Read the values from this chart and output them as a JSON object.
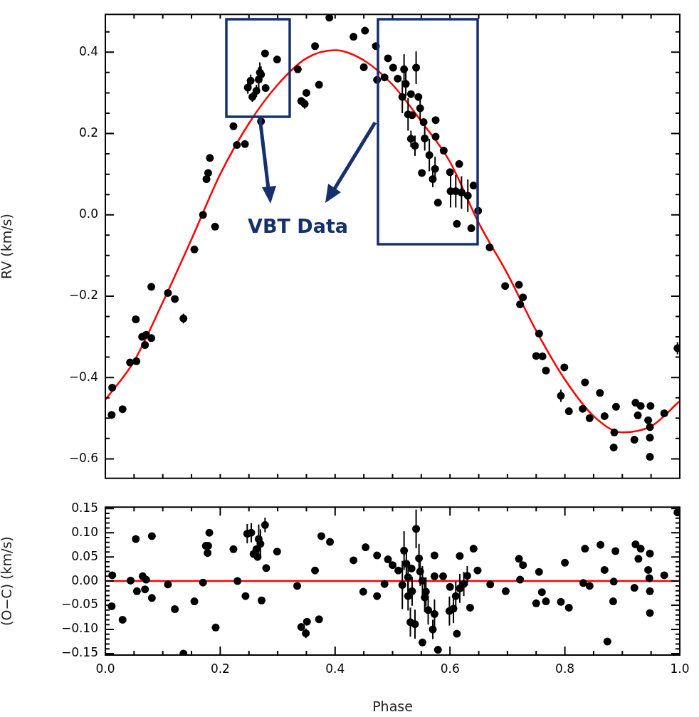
{
  "chart_data": [
    {
      "type": "scatter",
      "ylabel": "RV (km/s)",
      "annotations": [
        "VBT Data"
      ],
      "xlim": [
        0,
        1
      ],
      "xticks": [
        {
          "value": 0,
          "label": null
        },
        {
          "value": 0.05,
          "label": null
        },
        {
          "value": 0.1,
          "label": null
        },
        {
          "value": 0.15,
          "label": null
        },
        {
          "value": 0.2,
          "label": null
        },
        {
          "value": 0.25,
          "label": null
        },
        {
          "value": 0.3,
          "label": null
        },
        {
          "value": 0.35,
          "label": null
        },
        {
          "value": 0.4,
          "label": null
        },
        {
          "value": 0.45,
          "label": null
        },
        {
          "value": 0.5,
          "label": null
        },
        {
          "value": 0.55,
          "label": null
        },
        {
          "value": 0.6,
          "label": null
        },
        {
          "value": 0.65,
          "label": null
        },
        {
          "value": 0.7,
          "label": null
        },
        {
          "value": 0.75,
          "label": null
        },
        {
          "value": 0.8,
          "label": null
        },
        {
          "value": 0.85,
          "label": null
        },
        {
          "value": 0.9,
          "label": null
        },
        {
          "value": 0.95,
          "label": null
        },
        {
          "value": 1,
          "label": null
        }
      ],
      "ylim": [
        -0.648,
        0.493
      ],
      "yticks": [
        {
          "value": -0.6,
          "label": "−0.6"
        },
        {
          "value": -0.55,
          "label": null
        },
        {
          "value": -0.5,
          "label": null
        },
        {
          "value": -0.45,
          "label": null
        },
        {
          "value": -0.4,
          "label": "−0.4"
        },
        {
          "value": -0.35,
          "label": null
        },
        {
          "value": -0.3,
          "label": null
        },
        {
          "value": -0.25,
          "label": null
        },
        {
          "value": -0.2,
          "label": "−0.2"
        },
        {
          "value": -0.15,
          "label": null
        },
        {
          "value": -0.1,
          "label": null
        },
        {
          "value": -0.05,
          "label": null
        },
        {
          "value": 0,
          "label": "0.0"
        },
        {
          "value": 0.05,
          "label": null
        },
        {
          "value": 0.1,
          "label": null
        },
        {
          "value": 0.15,
          "label": null
        },
        {
          "value": 0.2,
          "label": "0.2"
        },
        {
          "value": 0.25,
          "label": null
        },
        {
          "value": 0.3,
          "label": null
        },
        {
          "value": 0.35,
          "label": null
        },
        {
          "value": 0.4,
          "label": "0.4"
        },
        {
          "value": 0.45,
          "label": null
        }
      ],
      "tick_labels": "y",
      "marker": "circle",
      "series": [
        {
          "color": "#000000",
          "x": [
            0.011,
            0.012,
            0.03,
            0.043,
            0.053,
            0.054,
            0.064,
            0.069,
            0.071,
            0.08,
            0.08,
            0.109,
            0.121,
            0.136,
            0.155,
            0.17,
            0.176,
            0.179,
            0.182,
            0.191,
            0.223,
            0.229,
            0.243,
            0.248,
            0.253,
            0.256,
            0.263,
            0.267,
            0.269,
            0.271,
            0.271,
            0.278,
            0.279,
            0.299,
            0.335,
            0.341,
            0.347,
            0.35,
            0.365,
            0.372,
            0.39,
            0.432,
            0.45,
            0.452,
            0.471,
            0.473,
            0.486,
            0.492,
            0.501,
            0.509,
            0.517,
            0.52,
            0.523,
            0.527,
            0.532,
            0.532,
            0.534,
            0.539,
            0.541,
            0.545,
            0.548,
            0.551,
            0.554,
            0.556,
            0.564,
            0.57,
            0.574,
            0.575,
            0.575,
            0.579,
            0.589,
            0.6,
            0.601,
            0.61,
            0.612,
            0.616,
            0.62,
            0.631,
            0.637,
            0.641,
            0.649,
            0.669,
            0.696,
            0.72,
            0.722,
            0.727,
            0.75,
            0.755,
            0.761,
            0.767,
            0.793,
            0.799,
            0.807,
            0.831,
            0.835,
            0.843,
            0.861,
            0.869,
            0.885,
            0.886,
            0.889,
            0.921,
            0.923,
            0.927,
            0.932,
            0.945,
            0.948,
            0.948,
            0.948,
            0.949,
            0.973,
            0.996
          ],
          "values": [
            -0.492,
            -0.425,
            -0.478,
            -0.363,
            -0.257,
            -0.36,
            -0.3,
            -0.32,
            -0.295,
            -0.303,
            -0.177,
            -0.192,
            -0.207,
            -0.255,
            -0.085,
            0.0,
            0.088,
            0.103,
            0.14,
            -0.029,
            0.218,
            0.172,
            0.174,
            0.313,
            0.33,
            0.29,
            0.305,
            0.333,
            0.35,
            0.345,
            0.23,
            0.397,
            0.312,
            0.382,
            0.358,
            0.28,
            0.273,
            0.3,
            0.415,
            0.32,
            0.485,
            0.438,
            0.363,
            0.453,
            0.415,
            0.332,
            0.338,
            0.385,
            0.362,
            0.335,
            0.29,
            0.358,
            0.322,
            0.247,
            0.297,
            0.187,
            0.245,
            0.17,
            0.362,
            0.29,
            0.262,
            0.103,
            0.228,
            0.188,
            0.147,
            0.088,
            0.113,
            0.233,
            0.192,
            0.03,
            0.158,
            0.105,
            0.058,
            0.058,
            -0.022,
            0.125,
            0.055,
            0.047,
            -0.033,
            0.072,
            0.01,
            -0.08,
            -0.175,
            -0.172,
            -0.22,
            -0.203,
            -0.347,
            -0.292,
            -0.348,
            -0.383,
            -0.445,
            -0.375,
            -0.483,
            -0.477,
            -0.412,
            -0.5,
            -0.438,
            -0.495,
            -0.572,
            -0.535,
            -0.472,
            -0.553,
            -0.462,
            -0.493,
            -0.47,
            -0.505,
            -0.522,
            -0.548,
            -0.595,
            -0.47,
            -0.488,
            -0.328
          ],
          "errors": [
            null,
            null,
            null,
            null,
            null,
            null,
            null,
            null,
            null,
            null,
            null,
            null,
            null,
            0.012,
            null,
            null,
            null,
            null,
            null,
            null,
            null,
            null,
            null,
            0.015,
            0.015,
            0.012,
            0.015,
            0.03,
            0.025,
            0.02,
            null,
            null,
            null,
            null,
            null,
            null,
            0.012,
            null,
            null,
            null,
            null,
            null,
            null,
            null,
            null,
            null,
            null,
            null,
            null,
            null,
            0.04,
            0.037,
            0.03,
            0.04,
            null,
            0.02,
            null,
            0.025,
            0.04,
            null,
            0.03,
            null,
            null,
            0.03,
            0.04,
            0.02,
            0.03,
            null,
            null,
            null,
            null,
            null,
            0.04,
            0.04,
            null,
            null,
            0.04,
            0.04,
            null,
            null,
            null,
            null,
            null,
            null,
            null,
            null,
            null,
            null,
            null,
            null,
            0.015,
            null,
            null,
            null,
            null,
            null,
            null,
            null,
            null,
            null,
            null,
            null,
            null,
            null,
            null,
            null,
            null,
            null,
            null,
            null,
            null,
            0.015
          ]
        },
        {
          "type": "line",
          "marker": "none",
          "color": "#ff0000",
          "x": [
            0,
            0.05,
            0.1,
            0.15,
            0.2,
            0.25,
            0.3,
            0.35,
            0.4,
            0.45,
            0.5,
            0.55,
            0.6,
            0.65,
            0.7,
            0.75,
            0.8,
            0.85,
            0.9,
            0.95,
            1
          ],
          "values": [
            -0.455,
            -0.36,
            -0.215,
            -0.06,
            0.1,
            0.225,
            0.32,
            0.385,
            0.405,
            0.38,
            0.32,
            0.23,
            0.13,
            -0.02,
            -0.145,
            -0.285,
            -0.405,
            -0.495,
            -0.535,
            -0.52,
            -0.458
          ]
        }
      ]
    },
    {
      "type": "scatter",
      "xlabel": "Phase",
      "ylabel": "(O−C) (km/s)",
      "xlim": [
        0,
        1
      ],
      "xticks": [
        {
          "value": 0,
          "label": "0.0"
        },
        {
          "value": 0.05,
          "label": null
        },
        {
          "value": 0.1,
          "label": null
        },
        {
          "value": 0.15,
          "label": null
        },
        {
          "value": 0.2,
          "label": "0.2"
        },
        {
          "value": 0.25,
          "label": null
        },
        {
          "value": 0.3,
          "label": null
        },
        {
          "value": 0.35,
          "label": null
        },
        {
          "value": 0.4,
          "label": "0.4"
        },
        {
          "value": 0.45,
          "label": null
        },
        {
          "value": 0.5,
          "label": null
        },
        {
          "value": 0.55,
          "label": null
        },
        {
          "value": 0.6,
          "label": "0.6"
        },
        {
          "value": 0.65,
          "label": null
        },
        {
          "value": 0.7,
          "label": null
        },
        {
          "value": 0.75,
          "label": null
        },
        {
          "value": 0.8,
          "label": "0.8"
        },
        {
          "value": 0.85,
          "label": null
        },
        {
          "value": 0.9,
          "label": null
        },
        {
          "value": 0.95,
          "label": null
        },
        {
          "value": 1,
          "label": "1.0"
        }
      ],
      "ylim": [
        -0.153,
        0.153
      ],
      "yticks": [
        {
          "value": -0.15,
          "label": "−0.15"
        },
        {
          "value": -0.14,
          "label": null
        },
        {
          "value": -0.13,
          "label": null
        },
        {
          "value": -0.12,
          "label": null
        },
        {
          "value": -0.11,
          "label": null
        },
        {
          "value": -0.1,
          "label": "−0.10"
        },
        {
          "value": -0.09,
          "label": null
        },
        {
          "value": -0.08,
          "label": null
        },
        {
          "value": -0.07,
          "label": null
        },
        {
          "value": -0.06,
          "label": null
        },
        {
          "value": -0.05,
          "label": "−0.05"
        },
        {
          "value": -0.04,
          "label": null
        },
        {
          "value": -0.03,
          "label": null
        },
        {
          "value": -0.02,
          "label": null
        },
        {
          "value": -0.01,
          "label": null
        },
        {
          "value": 0,
          "label": "0.00"
        },
        {
          "value": 0.01,
          "label": null
        },
        {
          "value": 0.02,
          "label": null
        },
        {
          "value": 0.03,
          "label": null
        },
        {
          "value": 0.04,
          "label": null
        },
        {
          "value": 0.05,
          "label": "0.05"
        },
        {
          "value": 0.06,
          "label": null
        },
        {
          "value": 0.07,
          "label": null
        },
        {
          "value": 0.08,
          "label": null
        },
        {
          "value": 0.09,
          "label": null
        },
        {
          "value": 0.1,
          "label": "0.10"
        },
        {
          "value": 0.11,
          "label": null
        },
        {
          "value": 0.12,
          "label": null
        },
        {
          "value": 0.13,
          "label": null
        },
        {
          "value": 0.14,
          "label": null
        },
        {
          "value": 0.15,
          "label": "0.15"
        }
      ],
      "marker": "circle",
      "ref_lines": [
        {
          "axis": "y",
          "value": 0,
          "color": "#ff0000"
        }
      ],
      "series": [
        {
          "color": "#000000",
          "x": [
            0.011,
            0.012,
            0.03,
            0.044,
            0.053,
            0.055,
            0.065,
            0.069,
            0.071,
            0.081,
            0.081,
            0.109,
            0.121,
            0.136,
            0.155,
            0.17,
            0.175,
            0.178,
            0.179,
            0.181,
            0.192,
            0.223,
            0.23,
            0.244,
            0.247,
            0.254,
            0.258,
            0.263,
            0.265,
            0.267,
            0.27,
            0.272,
            0.278,
            0.28,
            0.299,
            0.334,
            0.341,
            0.349,
            0.351,
            0.365,
            0.372,
            0.376,
            0.391,
            0.432,
            0.449,
            0.453,
            0.473,
            0.473,
            0.486,
            0.492,
            0.5,
            0.51,
            0.517,
            0.52,
            0.524,
            0.527,
            0.527,
            0.531,
            0.533,
            0.534,
            0.539,
            0.541,
            0.546,
            0.548,
            0.552,
            0.552,
            0.556,
            0.558,
            0.562,
            0.57,
            0.573,
            0.573,
            0.573,
            0.579,
            0.588,
            0.599,
            0.6,
            0.606,
            0.61,
            0.612,
            0.617,
            0.617,
            0.624,
            0.63,
            0.635,
            0.641,
            0.648,
            0.67,
            0.697,
            0.72,
            0.722,
            0.727,
            0.75,
            0.755,
            0.76,
            0.767,
            0.793,
            0.8,
            0.807,
            0.832,
            0.835,
            0.843,
            0.862,
            0.869,
            0.874,
            0.884,
            0.885,
            0.888,
            0.921,
            0.923,
            0.928,
            0.932,
            0.945,
            0.947,
            0.948,
            0.948,
            0.948,
            0.973,
            0.996
          ],
          "values": [
            -0.052,
            0.012,
            -0.08,
            0.001,
            0.087,
            -0.021,
            0.01,
            -0.017,
            0.003,
            -0.035,
            0.093,
            -0.007,
            -0.058,
            -0.15,
            -0.042,
            -0.003,
            0.073,
            0.058,
            0.073,
            0.1,
            -0.096,
            0.066,
            0.0,
            -0.031,
            0.098,
            0.1,
            0.056,
            0.066,
            0.05,
            0.087,
            0.077,
            -0.04,
            0.116,
            0.027,
            0.061,
            -0.01,
            -0.095,
            -0.108,
            -0.084,
            0.022,
            -0.079,
            0.093,
            0.081,
            0.043,
            -0.022,
            0.07,
            0.053,
            -0.031,
            -0.006,
            0.045,
            0.033,
            0.022,
            -0.008,
            0.063,
            0.036,
            0.008,
            -0.031,
            -0.085,
            0.026,
            -0.021,
            -0.089,
            0.108,
            0.047,
            0.02,
            0.001,
            -0.127,
            -0.034,
            -0.022,
            -0.06,
            -0.1,
            0.053,
            0.01,
            -0.068,
            -0.142,
            0.01,
            -0.062,
            -0.012,
            -0.057,
            -0.031,
            -0.109,
            0.052,
            -0.015,
            -0.006,
            0.011,
            -0.055,
            0.067,
            0.022,
            -0.007,
            -0.021,
            0.046,
            0.003,
            0.033,
            -0.046,
            0.019,
            -0.023,
            -0.042,
            -0.043,
            0.038,
            -0.055,
            -0.004,
            0.067,
            -0.01,
            0.075,
            0.023,
            -0.125,
            -0.042,
            -0.001,
            0.062,
            -0.014,
            0.076,
            0.046,
            0.067,
            0.023,
            0.006,
            0.057,
            -0.021,
            -0.066,
            0.012,
            0.142
          ],
          "errors": [
            null,
            null,
            null,
            null,
            null,
            null,
            null,
            null,
            null,
            null,
            null,
            null,
            null,
            null,
            null,
            null,
            null,
            null,
            null,
            null,
            null,
            null,
            null,
            null,
            0.02,
            0.02,
            null,
            null,
            null,
            0.03,
            0.03,
            null,
            0.015,
            null,
            null,
            null,
            null,
            0.01,
            null,
            null,
            null,
            null,
            null,
            null,
            null,
            null,
            null,
            null,
            null,
            null,
            null,
            null,
            0.05,
            0.04,
            0.03,
            0.03,
            0.03,
            0.03,
            null,
            0.03,
            0.03,
            0.04,
            0.03,
            0.03,
            0.03,
            null,
            0.03,
            0.03,
            0.03,
            0.02,
            null,
            null,
            0.03,
            null,
            null,
            0.03,
            null,
            0.03,
            0.03,
            null,
            null,
            0.03,
            0.025,
            0.02,
            null,
            null,
            null,
            null,
            null,
            null,
            null,
            null,
            null,
            null,
            null,
            null,
            null,
            null,
            null,
            null,
            null,
            null,
            null,
            null,
            null,
            null,
            null,
            null,
            null,
            null,
            null,
            null,
            null,
            null,
            null,
            null,
            null,
            null,
            null
          ]
        }
      ]
    }
  ]
}
